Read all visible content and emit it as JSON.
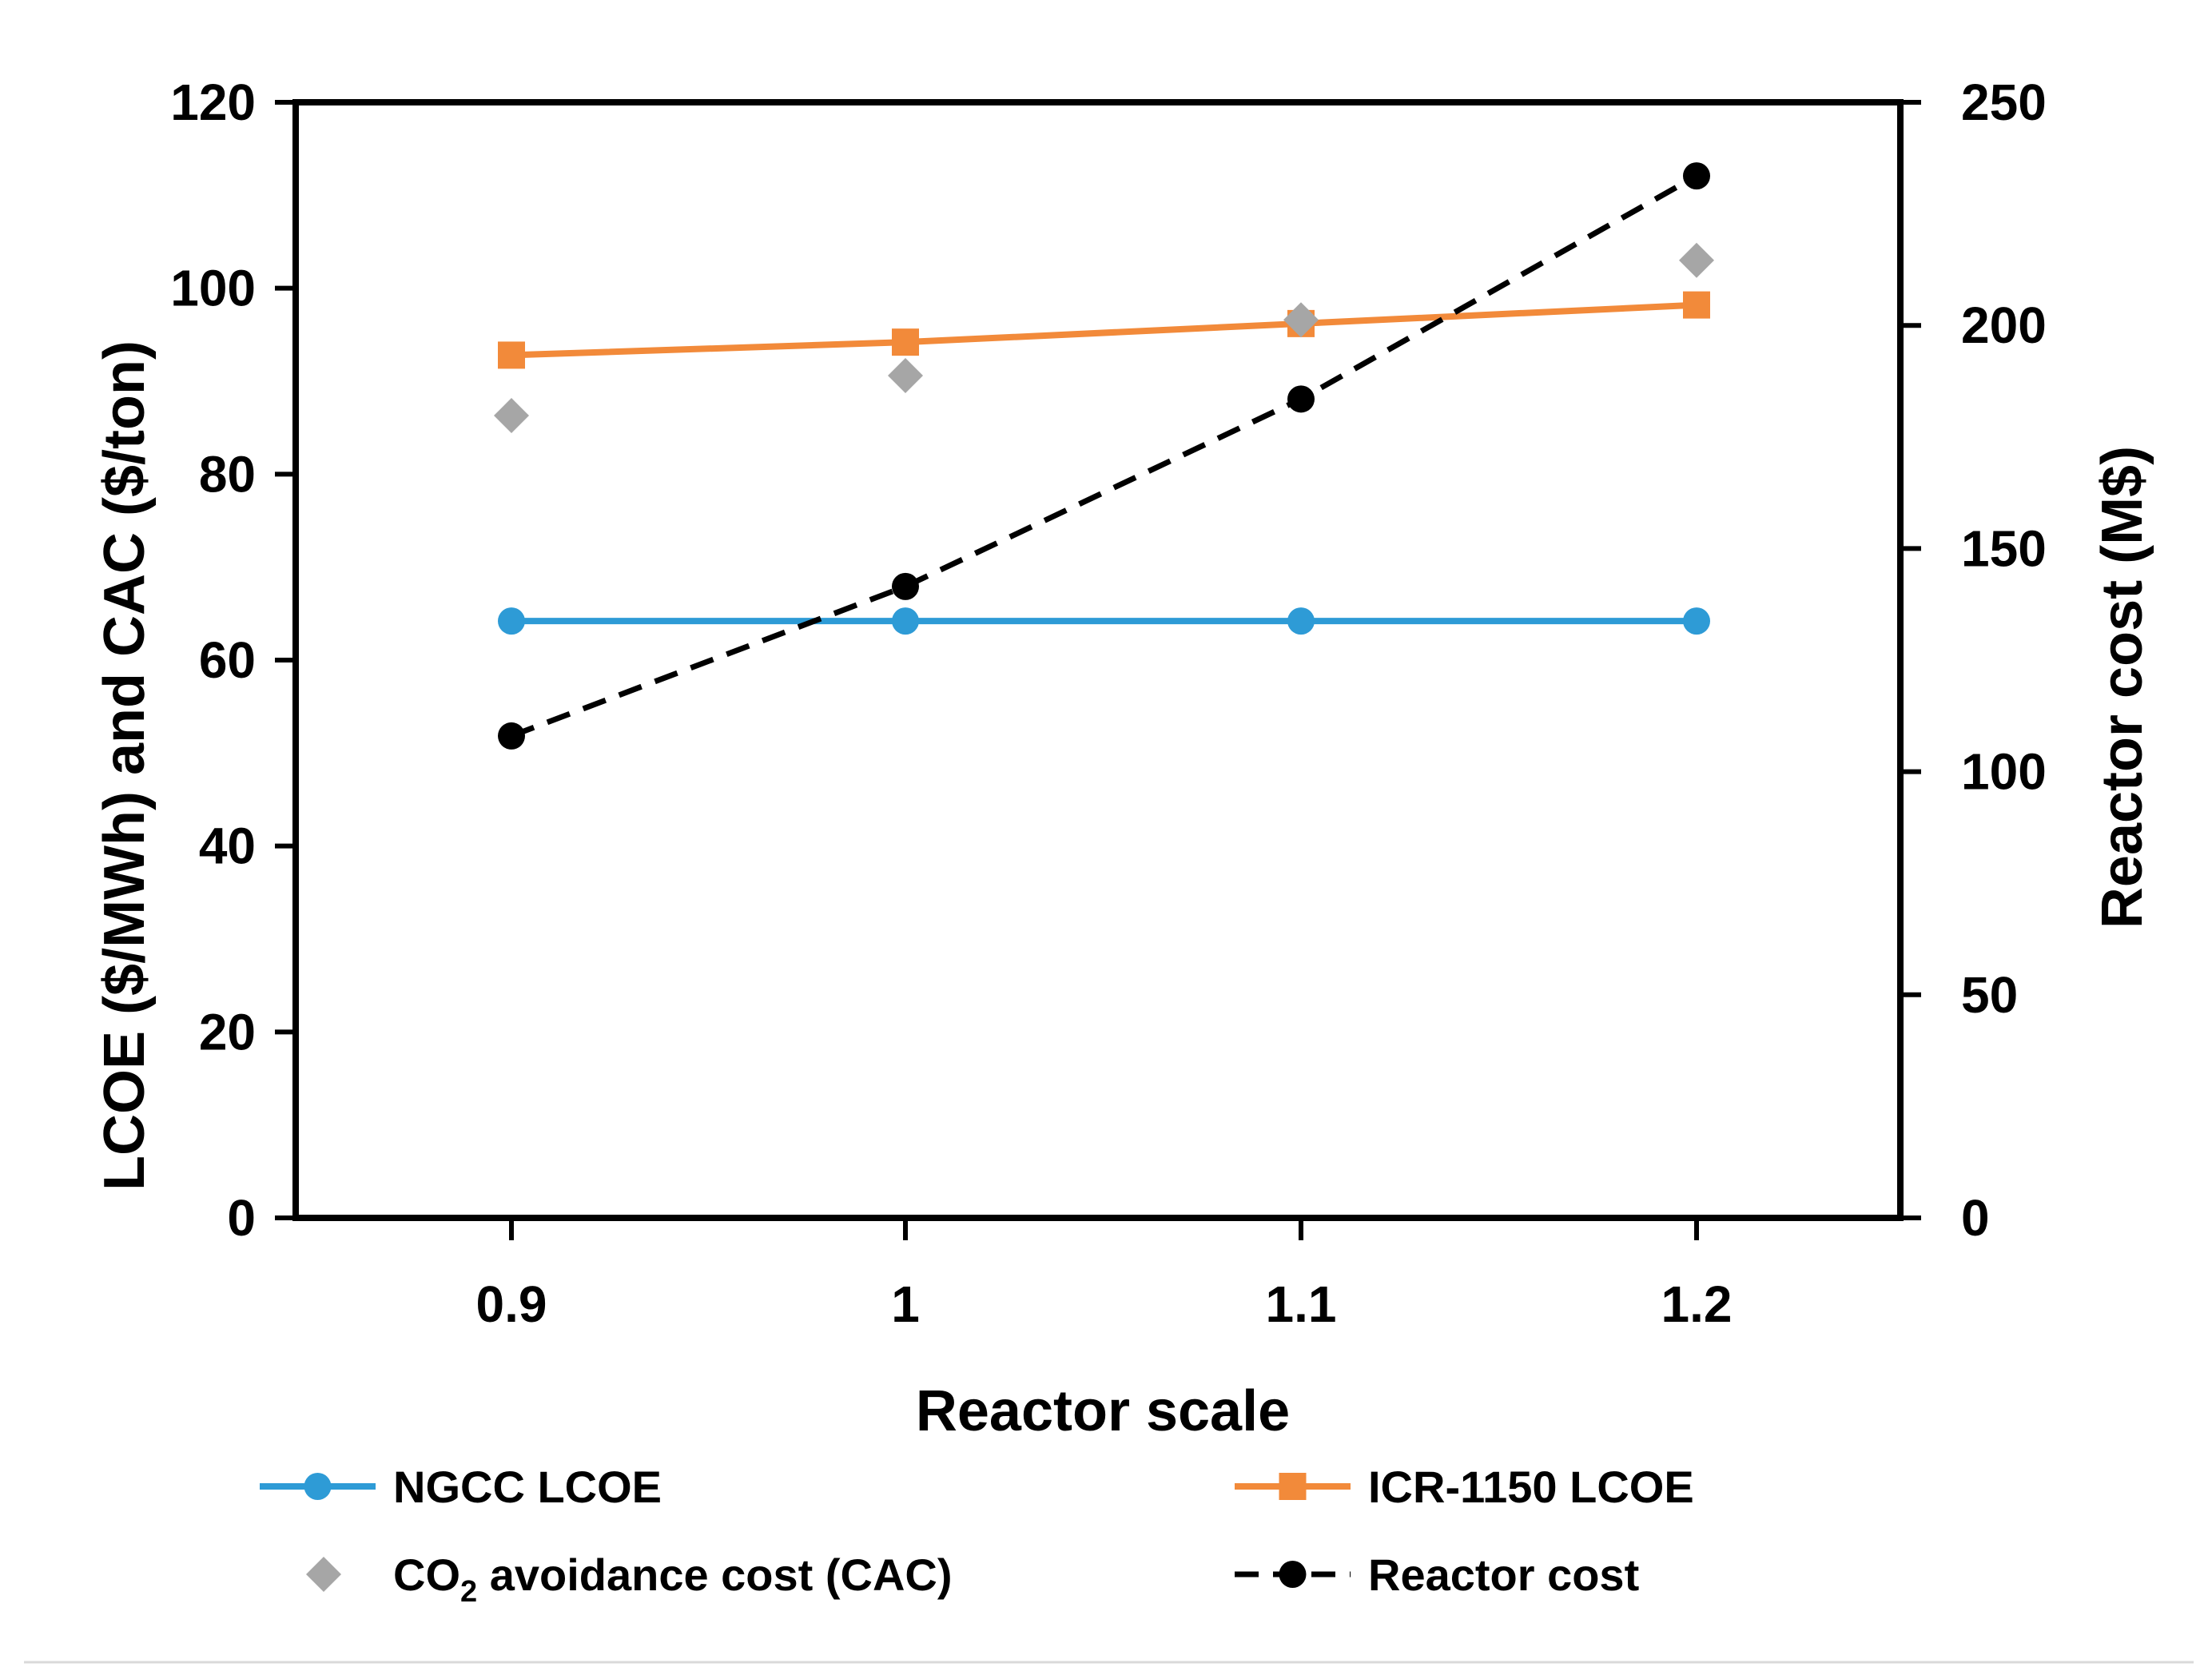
{
  "chart_data": {
    "type": "line",
    "title": "",
    "xlabel": "Reactor scale",
    "ylabel": "LCOE ($/MWh) and CAC ($/ton)",
    "y2label": "Reactor cost (M$)",
    "x": [
      0.9,
      1,
      1.1,
      1.2
    ],
    "x_tick_labels": [
      "0.9",
      "1",
      "1.1",
      "1.2"
    ],
    "ylim": [
      0,
      120
    ],
    "y_ticks": [
      0,
      20,
      40,
      60,
      80,
      100,
      120
    ],
    "y2lim": [
      0,
      250
    ],
    "y2_ticks": [
      0,
      50,
      100,
      150,
      200,
      250
    ],
    "legend_position": "bottom",
    "series": [
      {
        "name": "NGCC LCOE",
        "axis": "left",
        "style": "line-circle",
        "color": "#2E9BD6",
        "values": [
          64.2,
          64.2,
          64.2,
          64.2
        ]
      },
      {
        "name": "ICR-1150 LCOE",
        "axis": "left",
        "style": "line-square",
        "color": "#F28A3A",
        "values": [
          92.8,
          94.2,
          96.2,
          98.2
        ]
      },
      {
        "name": "CO2 avoidance cost (CAC)",
        "label_main": "CO",
        "label_sub": "2",
        "label_rest": " avoidance cost (CAC)",
        "axis": "left",
        "style": "marker-diamond",
        "color": "#A6A6A6",
        "values": [
          86.3,
          90.6,
          96.6,
          103
        ]
      },
      {
        "name": "Reactor cost",
        "axis": "right",
        "style": "dashed-circle",
        "color": "#000000",
        "values": [
          108,
          141.5,
          183.5,
          233.5
        ]
      }
    ]
  }
}
